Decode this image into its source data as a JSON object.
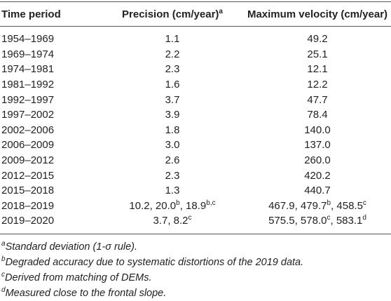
{
  "table": {
    "header": [
      "Time period",
      [
        {
          "text": "Precision (cm/year)",
          "sup": "a"
        }
      ],
      "Maximum velocity (cm/year)"
    ],
    "rows": [
      [
        "1954–1969",
        "1.1",
        "49.2"
      ],
      [
        "1969–1974",
        "2.2",
        "25.1"
      ],
      [
        "1974–1981",
        "2.3",
        "12.1"
      ],
      [
        "1981–1992",
        "1.6",
        "12.2"
      ],
      [
        "1992–1997",
        "3.7",
        "47.7"
      ],
      [
        "1997–2002",
        "3.9",
        "78.4"
      ],
      [
        "2002–2006",
        "1.8",
        "140.0"
      ],
      [
        "2006–2009",
        "3.0",
        "137.0"
      ],
      [
        "2009–2012",
        "2.6",
        "260.0"
      ],
      [
        "2012–2015",
        "2.3",
        "420.2"
      ],
      [
        "2015–2018",
        "1.3",
        "440.7"
      ],
      [
        "2018–2019",
        [
          {
            "text": "10.2, 20.0",
            "sup": "b"
          },
          {
            "text": ", 18.9",
            "sup": "b,c"
          }
        ],
        [
          {
            "text": "467.9, 479.7",
            "sup": "b"
          },
          {
            "text": ", 458.5",
            "sup": "c"
          }
        ]
      ],
      [
        "2019–2020",
        [
          {
            "text": "3.7, 8.2",
            "sup": "c"
          }
        ],
        [
          {
            "text": "575.5, 578.0",
            "sup": "c"
          },
          {
            "text": ", 583.1",
            "sup": "d"
          }
        ]
      ]
    ]
  },
  "footnotes": [
    {
      "mark": "a",
      "text": "Standard deviation (1-σ rule)."
    },
    {
      "mark": "b",
      "text": "Degraded accuracy due to systematic distortions of the 2019 data."
    },
    {
      "mark": "c",
      "text": "Derived from matching of DEMs."
    },
    {
      "mark": "d",
      "text": "Measured close to the frontal slope."
    }
  ]
}
